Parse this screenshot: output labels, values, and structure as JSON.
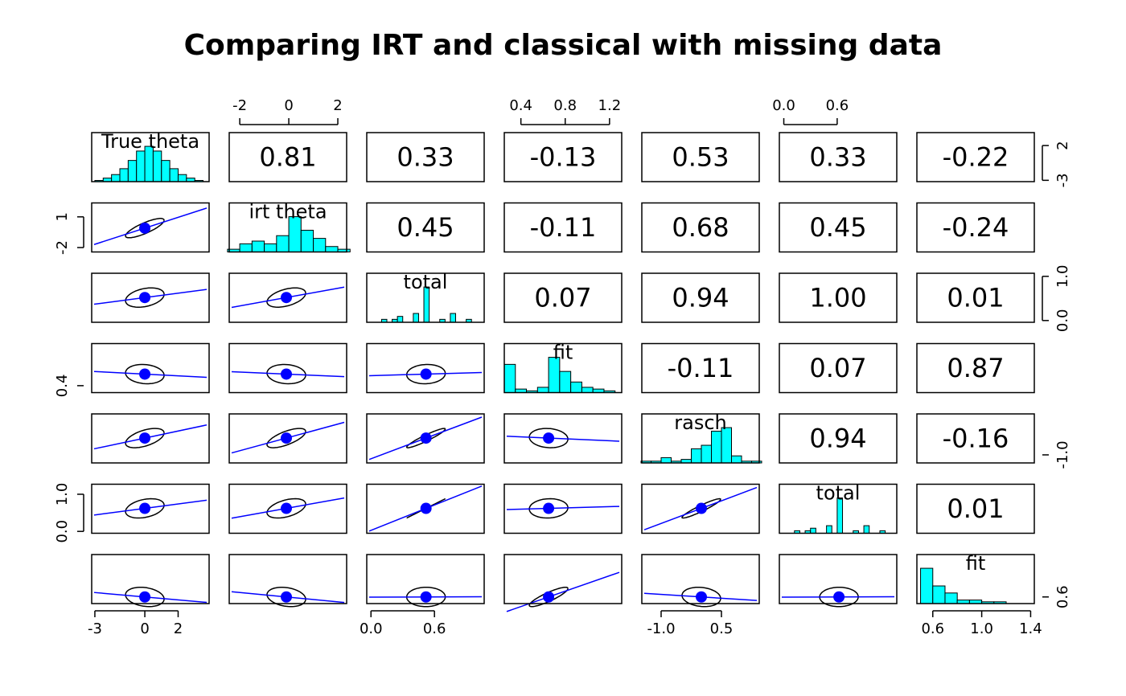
{
  "chart_data": {
    "type": "pairs",
    "title": "Comparing IRT and classical with missing data",
    "hist_color": "#00ffff",
    "fit_color": "#0000ff",
    "variables": [
      {
        "name": "True theta",
        "lim": [
          -3.19,
          3.86
        ],
        "xticks": [
          -3,
          0,
          2
        ],
        "yticks": [
          -3,
          2
        ],
        "mean": 0,
        "bins": [
          -3,
          -2.5,
          -2,
          -1.5,
          -1,
          -0.5,
          0,
          0.5,
          1,
          1.5,
          2,
          2.5,
          3,
          3.5
        ],
        "counts": [
          1,
          3,
          6,
          11,
          18,
          26,
          30,
          26,
          18,
          11,
          6,
          3,
          1
        ]
      },
      {
        "name": "irt theta",
        "lim": [
          -2.43,
          2.36
        ],
        "xticks": [
          -2,
          0,
          2
        ],
        "yticks": [
          -2,
          1
        ],
        "mean": -0.1,
        "bins": [
          -2.5,
          -2,
          -1.5,
          -1,
          -0.5,
          0,
          0.5,
          1,
          1.5,
          2,
          2.5
        ],
        "counts": [
          1,
          3,
          4,
          3,
          6,
          13,
          8,
          5,
          2,
          1
        ]
      },
      {
        "name": "total",
        "lim": [
          -0.04,
          1.07
        ],
        "xticks": [
          {
            "value": 0,
            "label": "0.0"
          },
          0.6
        ],
        "yticks": [
          {
            "value": 0,
            "label": "0.0"
          },
          {
            "value": 1,
            "label": "1.0"
          }
        ],
        "mean": 0.52,
        "bins": [
          0,
          0.05,
          0.1,
          0.15,
          0.2,
          0.25,
          0.3,
          0.35,
          0.4,
          0.45,
          0.5,
          0.55,
          0.6,
          0.65,
          0.7,
          0.75,
          0.8,
          0.85,
          0.9,
          0.95,
          1
        ],
        "counts": [
          0,
          0,
          1,
          0,
          1,
          2,
          0,
          0,
          3,
          0,
          12,
          0,
          0,
          1,
          0,
          3,
          0,
          0,
          1,
          0
        ]
      },
      {
        "name": "fit",
        "lim": [
          0.25,
          1.31
        ],
        "xticks": [
          0.4,
          0.8,
          1.2
        ],
        "yticks": [
          0.4
        ],
        "mean": 0.65,
        "bins": [
          0.25,
          0.35,
          0.45,
          0.55,
          0.65,
          0.75,
          0.85,
          0.95,
          1.05,
          1.15,
          1.25,
          1.35
        ],
        "counts": [
          16,
          2,
          1,
          3,
          20,
          12,
          6,
          3,
          2,
          1,
          0
        ]
      },
      {
        "name": "rasch",
        "lim": [
          -1.48,
          1.44
        ],
        "xticks": [
          {
            "value": -1,
            "label": "-1.0"
          },
          0.5
        ],
        "yticks": [
          {
            "value": -1,
            "label": "-1.0"
          }
        ],
        "mean": 0,
        "bins": [
          -1.5,
          -1.25,
          -1,
          -0.75,
          -0.5,
          -0.25,
          0,
          0.25,
          0.5,
          0.75,
          1,
          1.25,
          1.5
        ],
        "counts": [
          1,
          1,
          3,
          1,
          2,
          8,
          10,
          18,
          20,
          4,
          1,
          1
        ]
      },
      {
        "name": "total",
        "lim": [
          -0.05,
          1.27
        ],
        "xticks": [
          {
            "value": 0,
            "label": "0.0"
          },
          0.6
        ],
        "yticks": [
          {
            "value": 0,
            "label": "0.0"
          },
          {
            "value": 1,
            "label": "1.0"
          }
        ],
        "mean": 0.62,
        "bins": [
          0,
          0.06,
          0.12,
          0.18,
          0.24,
          0.3,
          0.36,
          0.42,
          0.48,
          0.54,
          0.6,
          0.66,
          0.72,
          0.78,
          0.84,
          0.9,
          0.96,
          1.02,
          1.08,
          1.14,
          1.2
        ],
        "counts": [
          0,
          0,
          1,
          0,
          1,
          2,
          0,
          0,
          3,
          0,
          14,
          0,
          0,
          1,
          0,
          3,
          0,
          0,
          1,
          0
        ]
      },
      {
        "name": "fit",
        "lim": [
          0.47,
          1.43
        ],
        "xticks": [
          0.6,
          {
            "value": 1,
            "label": "1.0"
          },
          1.4
        ],
        "yticks": [
          0.6
        ],
        "mean": 0.6,
        "bins": [
          0.5,
          0.6,
          0.7,
          0.8,
          0.9,
          1,
          1.1,
          1.2,
          1.3,
          1.4
        ],
        "counts": [
          20,
          10,
          6,
          2,
          2,
          1,
          1,
          0,
          0
        ]
      }
    ],
    "correlations": [
      {
        "values": [
          0.81,
          0.33,
          -0.13,
          0.53,
          0.33,
          -0.22
        ],
        "value_labels": [
          "0.81",
          "0.33",
          "-0.13",
          "0.53",
          "0.33",
          "-0.22"
        ]
      },
      {
        "values": [
          0.45,
          -0.11,
          0.68,
          0.45,
          -0.24
        ],
        "value_labels": [
          "0.45",
          "-0.11",
          "0.68",
          "0.45",
          "-0.24"
        ]
      },
      {
        "values": [
          0.07,
          0.94,
          1,
          0.01
        ],
        "value_labels": [
          "0.07",
          "0.94",
          "1.00",
          "0.01"
        ]
      },
      {
        "values": [
          -0.11,
          0.07,
          0.87
        ],
        "value_labels": [
          "-0.11",
          "0.07",
          "0.87"
        ]
      },
      {
        "values": [
          0.94,
          -0.16
        ],
        "value_labels": [
          "0.94",
          "-0.16"
        ]
      },
      {
        "values": [
          0.01
        ],
        "value_labels": [
          "0.01"
        ]
      }
    ]
  }
}
